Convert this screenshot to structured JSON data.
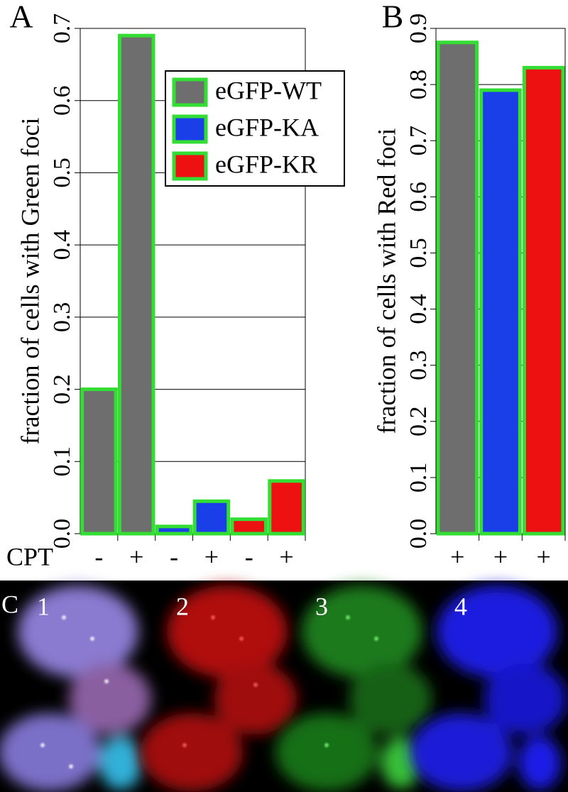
{
  "chart_data": [
    {
      "type": "bar",
      "panel_label": "A",
      "y_label": "fraction of cells with Green foci",
      "x_label": "CPT",
      "categories": [
        "-",
        "+",
        "-",
        "+",
        "-",
        "+"
      ],
      "series": [
        {
          "name": "eGFP-WT",
          "color": "#6e6e6e",
          "values": [
            0.2,
            0.69,
            null,
            null,
            null,
            null
          ]
        },
        {
          "name": "eGFP-KA",
          "color": "#1a3ee8",
          "values": [
            null,
            null,
            0.01,
            0.045,
            null,
            null
          ]
        },
        {
          "name": "eGFP-KR",
          "color": "#ee1111",
          "values": [
            null,
            null,
            null,
            null,
            0.02,
            0.073
          ]
        }
      ],
      "edge_color": "#33dd33",
      "ylim": [
        0,
        0.7
      ],
      "yticks": [
        {
          "value": 0,
          "label": "0.0"
        },
        0.1,
        0.2,
        0.3,
        0.4,
        0.5,
        0.6,
        0.7
      ],
      "grid": true,
      "legend": "upper right"
    },
    {
      "type": "bar",
      "panel_label": "B",
      "y_label": "fraction of cells with Red foci",
      "categories": [
        "+",
        "+",
        "+"
      ],
      "values": [
        0.875,
        0.79,
        0.83
      ],
      "colors": [
        "#6e6e6e",
        "#1a3ee8",
        "#ee1111"
      ],
      "edge_color": "#33dd33",
      "ylim": [
        0,
        0.9
      ],
      "yticks": [
        {
          "value": 0,
          "label": "0.0"
        },
        0.1,
        0.2,
        0.3,
        0.4,
        0.5,
        0.6,
        0.7,
        0.8,
        0.9
      ],
      "grid": true
    }
  ],
  "images": {
    "panel_label": "C",
    "labels": [
      "1",
      "2",
      "3",
      "4"
    ]
  }
}
